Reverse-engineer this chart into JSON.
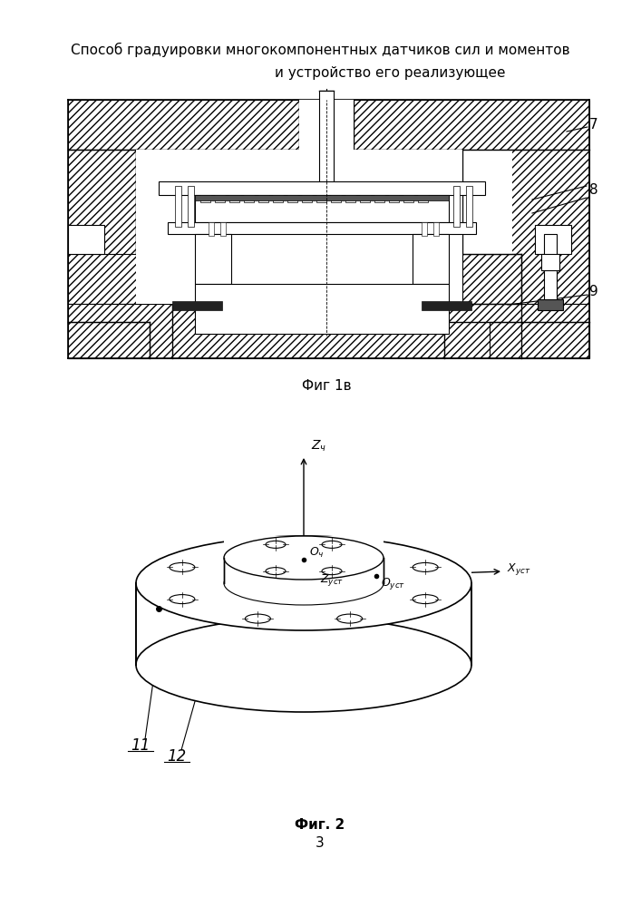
{
  "title_line1": "Способ градуировки многокомпонентных датчиков сил и моментов",
  "title_line2": "и устройство его реализующее",
  "fig1_label": "Фиг 1в",
  "fig2_label": "Фиг. 2",
  "page_number": "3",
  "bg_color": "#ffffff",
  "lc": "#000000",
  "label7": "7",
  "label8": "8",
  "label9": "9",
  "label11": "11",
  "label12": "12"
}
